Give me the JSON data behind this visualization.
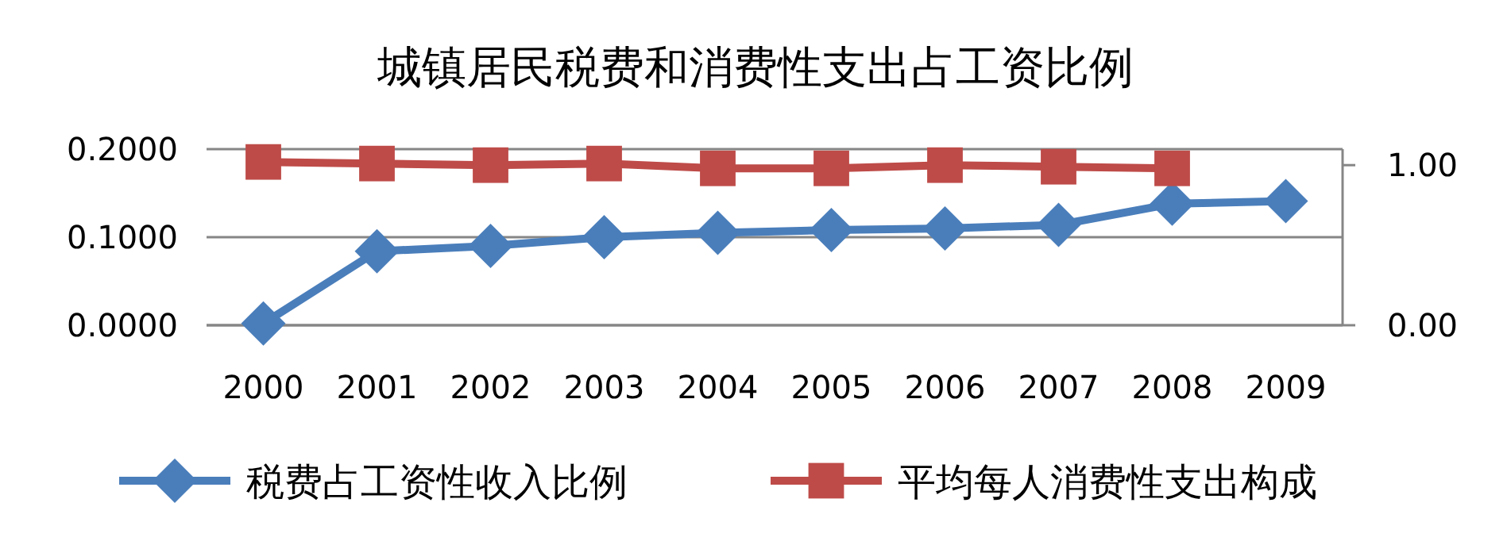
{
  "chart_data": {
    "type": "line",
    "title": "城镇居民税费和消费性支出占工资比例",
    "categories": [
      "2000",
      "2001",
      "2002",
      "2003",
      "2004",
      "2005",
      "2006",
      "2007",
      "2008",
      "2009"
    ],
    "series": [
      {
        "name": "税费占工资性收入比例",
        "color": "#4a7ebb",
        "marker": "diamond",
        "values": [
          0.002,
          0.084,
          0.09,
          0.1,
          0.105,
          0.108,
          0.11,
          0.114,
          0.138,
          0.141
        ]
      },
      {
        "name": "平均每人消费性支出构成",
        "color": "#be4b48",
        "marker": "square",
        "axis": "y2",
        "values": [
          1.02,
          1.01,
          1.0,
          1.01,
          0.98,
          0.98,
          1.0,
          0.99,
          0.98,
          null
        ]
      }
    ],
    "ylim": [
      0,
      0.2
    ],
    "yticks": [
      {
        "value": 0,
        "label": "0.0000"
      },
      {
        "value": 0.1,
        "label": "0.1000"
      },
      {
        "value": 0.2,
        "label": "0.2000"
      }
    ],
    "y2lim": [
      0,
      1.1
    ],
    "y2ticks": [
      {
        "value": 0,
        "label": "0.00"
      },
      {
        "value": 1,
        "label": "1.00"
      }
    ],
    "grid": "y",
    "legend": "bottom"
  }
}
